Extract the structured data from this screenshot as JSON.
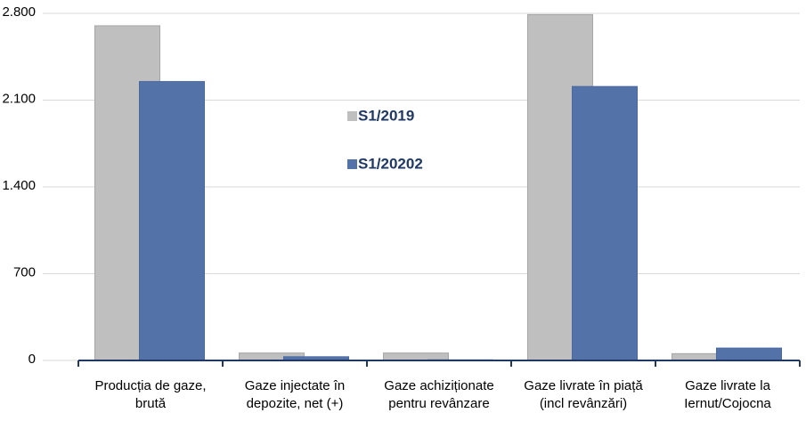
{
  "chart_data": {
    "type": "bar",
    "categories": [
      "Producția de gaze, brută",
      "Gaze injectate în depozite, net (+)",
      "Gaze achiziționate pentru revânzare",
      "Gaze livrate în piață (incl revânzări)",
      "Gaze livrate la Iernut/Cojocna"
    ],
    "series": [
      {
        "name": "S1/2019",
        "color": "#bfbfbf",
        "values": [
          2700,
          60,
          60,
          2790,
          55
        ]
      },
      {
        "name": "S1/20202",
        "color": "#5373a8",
        "values": [
          2250,
          30,
          5,
          2210,
          100
        ]
      }
    ],
    "ylim": [
      0,
      2800
    ],
    "yticks": [
      0,
      700,
      {
        "value": 1400,
        "label": "1.400"
      },
      {
        "value": 2100,
        "label": "2.100"
      },
      {
        "value": 2800,
        "label": "2.800"
      }
    ],
    "grid": true
  }
}
